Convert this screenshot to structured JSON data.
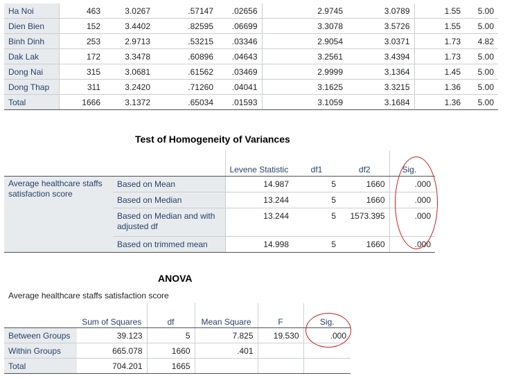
{
  "descriptives": {
    "rows": [
      {
        "label": "Ha Noi",
        "n": "463",
        "mean": "3.0267",
        "sd": ".57147",
        "se": ".02656",
        "lo": "2.9745",
        "hi": "3.0789",
        "min": "1.55",
        "max": "5.00"
      },
      {
        "label": "Dien Bien",
        "n": "152",
        "mean": "3.4402",
        "sd": ".82595",
        "se": ".06699",
        "lo": "3.3078",
        "hi": "3.5726",
        "min": "1.55",
        "max": "5.00"
      },
      {
        "label": "Binh Dinh",
        "n": "253",
        "mean": "2.9713",
        "sd": ".53215",
        "se": ".03346",
        "lo": "2.9054",
        "hi": "3.0371",
        "min": "1.73",
        "max": "4.82"
      },
      {
        "label": "Dak Lak",
        "n": "172",
        "mean": "3.3478",
        "sd": ".60896",
        "se": ".04643",
        "lo": "3.2561",
        "hi": "3.4394",
        "min": "1.73",
        "max": "5.00"
      },
      {
        "label": "Dong Nai",
        "n": "315",
        "mean": "3.0681",
        "sd": ".61562",
        "se": ".03469",
        "lo": "2.9999",
        "hi": "3.1364",
        "min": "1.45",
        "max": "5.00"
      },
      {
        "label": "Dong Thap",
        "n": "311",
        "mean": "3.2420",
        "sd": ".71260",
        "se": ".04041",
        "lo": "3.1625",
        "hi": "3.3215",
        "min": "1.36",
        "max": "5.00"
      },
      {
        "label": "Total",
        "n": "1666",
        "mean": "3.1372",
        "sd": ".65034",
        "se": ".01593",
        "lo": "3.1059",
        "hi": "3.1684",
        "min": "1.36",
        "max": "5.00"
      }
    ]
  },
  "levene": {
    "title": "Test of Homogeneity of Variances",
    "headers": {
      "stat": "Levene Statistic",
      "df1": "df1",
      "df2": "df2",
      "sig": "Sig."
    },
    "variable": "Average healthcare staffs satisfaction score",
    "rows": [
      {
        "label": "Based on Mean",
        "stat": "14.987",
        "df1": "5",
        "df2": "1660",
        "sig": ".000"
      },
      {
        "label": "Based on Median",
        "stat": "13.244",
        "df1": "5",
        "df2": "1660",
        "sig": ".000"
      },
      {
        "label": "Based on Median and with adjusted df",
        "stat": "13.244",
        "df1": "5",
        "df2": "1573.395",
        "sig": ".000"
      },
      {
        "label": "Based on trimmed mean",
        "stat": "14.998",
        "df1": "5",
        "df2": "1660",
        "sig": ".000"
      }
    ]
  },
  "anova": {
    "title": "ANOVA",
    "caption": "Average healthcare staffs satisfaction score",
    "headers": {
      "ss": "Sum of Squares",
      "df": "df",
      "ms": "Mean Square",
      "f": "F",
      "sig": "Sig."
    },
    "rows": [
      {
        "label": "Between Groups",
        "ss": "39.123",
        "df": "5",
        "ms": "7.825",
        "f": "19.530",
        "sig": ".000"
      },
      {
        "label": "Within Groups",
        "ss": "665.078",
        "df": "1660",
        "ms": ".401",
        "f": "",
        "sig": ""
      },
      {
        "label": "Total",
        "ss": "704.201",
        "df": "1665",
        "ms": "",
        "f": "",
        "sig": ""
      }
    ]
  },
  "annotation_color": "#d01818"
}
